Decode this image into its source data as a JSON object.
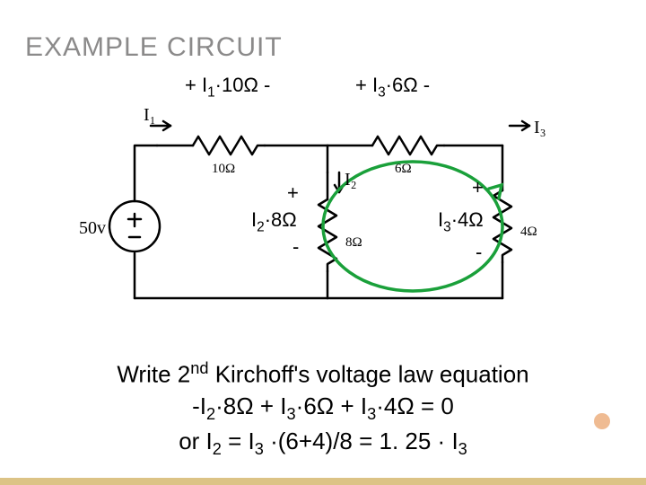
{
  "title": "EXAMPLE CIRCUIT",
  "labels": {
    "I1": "I",
    "I1sub": "1",
    "I2": "I",
    "I2sub": "2",
    "I3": "I",
    "I3sub": "3",
    "top_left": "+ I<sub>1</sub>·10Ω -",
    "top_right": "+ I<sub>3</sub>·6Ω  -",
    "mid_left_plus": "+",
    "mid_left_v": "I<sub>2</sub>·8Ω",
    "mid_left_minus": "-",
    "mid_right_plus": "+",
    "mid_right_v": "I<sub>3</sub>·4Ω",
    "mid_right_minus": "-",
    "r10": "10Ω",
    "r6": "6Ω",
    "r8": "8Ω",
    "r4": "4Ω",
    "source": "50v"
  },
  "equations": {
    "line1": "Write 2<sup>nd</sup> Kirchoff's voltage law equation",
    "line2": "-I<sub>2</sub>·8Ω + I<sub>3</sub>·6Ω  + I<sub>3</sub>·4Ω = 0",
    "line3": "or I<sub>2</sub> = I<sub>3</sub> ·(6+4)/8 = 1. 25 · I<sub>3</sub>"
  },
  "colors": {
    "wire": "#000000",
    "loop": "#1aa03a",
    "accent_line": "#dcc386",
    "accent_dot": "#efbb92"
  }
}
